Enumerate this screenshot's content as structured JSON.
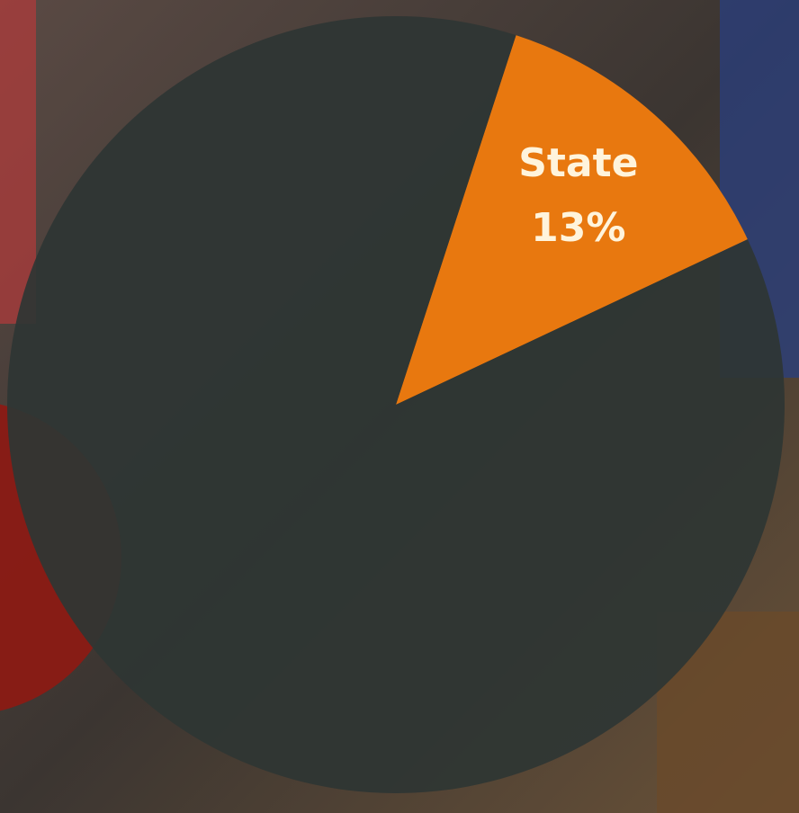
{
  "chart_data": {
    "type": "pie",
    "categories": [
      "State",
      null
    ],
    "values": [
      13,
      87
    ],
    "value_labels": [
      "13%",
      null
    ],
    "colors": [
      "#e8780f",
      "#2e3634"
    ]
  }
}
